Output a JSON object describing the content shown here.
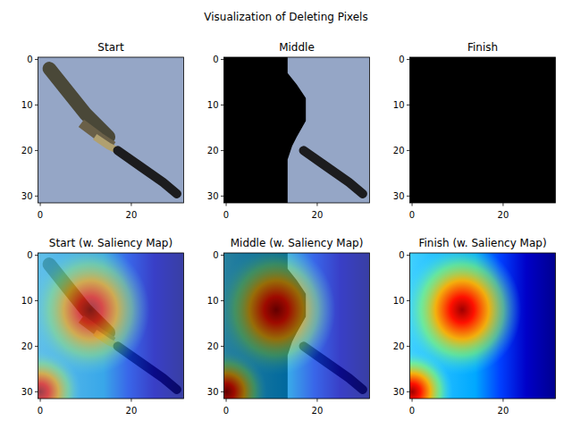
{
  "title": "Visualization of Deleting Pixels",
  "chart_data": [
    {
      "type": "image",
      "title": "Start",
      "xlim": [
        -0.5,
        31.5
      ],
      "ylim": [
        31.5,
        -0.5
      ],
      "xticks": [
        0,
        20
      ],
      "yticks": [
        0,
        10,
        20,
        30
      ]
    },
    {
      "type": "image",
      "title": "Middle",
      "xlim": [
        -0.5,
        31.5
      ],
      "ylim": [
        31.5,
        -0.5
      ],
      "xticks": [
        0,
        20
      ],
      "yticks": [
        0,
        10,
        20,
        30
      ]
    },
    {
      "type": "image",
      "title": "Finish",
      "xlim": [
        -0.5,
        31.5
      ],
      "ylim": [
        31.5,
        -0.5
      ],
      "xticks": [
        0,
        20
      ],
      "yticks": [
        0,
        10,
        20,
        30
      ]
    },
    {
      "type": "heatmap",
      "title": "Start (w. Saliency Map)",
      "xlim": [
        -0.5,
        31.5
      ],
      "ylim": [
        31.5,
        -0.5
      ],
      "xticks": [
        0,
        20
      ],
      "yticks": [
        0,
        10,
        20,
        30
      ]
    },
    {
      "type": "heatmap",
      "title": "Middle (w. Saliency Map)",
      "xlim": [
        -0.5,
        31.5
      ],
      "ylim": [
        31.5,
        -0.5
      ],
      "xticks": [
        0,
        20
      ],
      "yticks": [
        0,
        10,
        20,
        30
      ]
    },
    {
      "type": "heatmap",
      "title": "Finish (w. Saliency Map)",
      "xlim": [
        -0.5,
        31.5
      ],
      "ylim": [
        31.5,
        -0.5
      ],
      "xticks": [
        0,
        20
      ],
      "yticks": [
        0,
        10,
        20,
        30
      ]
    }
  ]
}
